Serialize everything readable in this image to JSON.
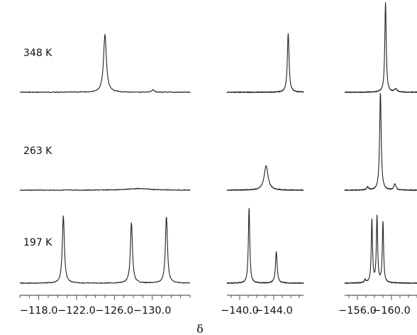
{
  "chart_data": {
    "type": "line",
    "title": "",
    "xlabel": "δ",
    "ylabel": "",
    "x_direction": "decreasing",
    "temperatures": [
      "348 K",
      "263 K",
      "197 K"
    ],
    "panels": [
      {
        "xlim": [
          -116.0,
          -134.0
        ],
        "tick_labels": [
          "−118.0",
          "−122.0",
          "−126.0",
          "−130.0"
        ],
        "tick_values": [
          -118.0,
          -122.0,
          -126.0,
          -130.0
        ],
        "minor_step": 1.0,
        "spectra": [
          {
            "temperature": "348 K",
            "peaks": [
              {
                "delta": -125.0,
                "height": 0.74,
                "width": 0.18
              },
              {
                "delta": -130.1,
                "height": 0.03,
                "width": 0.15
              }
            ]
          },
          {
            "temperature": "263 K",
            "peaks": [
              {
                "delta": -128.5,
                "height": 0.02,
                "width": 1.6
              }
            ]
          },
          {
            "temperature": "197 K",
            "peaks": [
              {
                "delta": -120.6,
                "height": 0.87,
                "width": 0.13
              },
              {
                "delta": -127.8,
                "height": 0.78,
                "width": 0.13
              },
              {
                "delta": -131.5,
                "height": 0.86,
                "width": 0.13
              }
            ]
          }
        ]
      },
      {
        "xlim": [
          -138.5,
          -147.5
        ],
        "tick_labels": [
          "−140.0",
          "−144.0"
        ],
        "tick_values": [
          -140.0,
          -144.0
        ],
        "minor_step": 1.0,
        "spectra": [
          {
            "temperature": "348 K",
            "peaks": [
              {
                "delta": -145.7,
                "height": 0.75,
                "width": 0.12
              }
            ]
          },
          {
            "temperature": "263 K",
            "peaks": [
              {
                "delta": -143.1,
                "height": 0.31,
                "width": 0.28
              }
            ]
          },
          {
            "temperature": "197 K",
            "peaks": [
              {
                "delta": -141.1,
                "height": 0.96,
                "width": 0.1
              },
              {
                "delta": -144.3,
                "height": 0.4,
                "width": 0.12
              }
            ]
          }
        ]
      },
      {
        "xlim": [
          -154.5,
          -163.0
        ],
        "tick_labels": [
          "−156.0",
          "−160.0"
        ],
        "tick_values": [
          -156.0,
          -160.0
        ],
        "minor_step": 1.0,
        "spectra": [
          {
            "temperature": "348 K",
            "peaks": [
              {
                "delta": -159.3,
                "height": 1.15,
                "width": 0.1
              },
              {
                "delta": -160.5,
                "height": 0.04,
                "width": 0.18
              }
            ]
          },
          {
            "temperature": "263 K",
            "peaks": [
              {
                "delta": -158.7,
                "height": 1.25,
                "width": 0.11
              },
              {
                "delta": -157.2,
                "height": 0.04,
                "width": 0.12
              },
              {
                "delta": -160.4,
                "height": 0.08,
                "width": 0.14
              }
            ]
          },
          {
            "temperature": "197 K",
            "peaks": [
              {
                "delta": -157.7,
                "height": 0.8,
                "width": 0.09
              },
              {
                "delta": -158.3,
                "height": 0.84,
                "width": 0.09
              },
              {
                "delta": -159.0,
                "height": 0.78,
                "width": 0.09
              },
              {
                "delta": -156.9,
                "height": 0.04,
                "width": 0.1
              }
            ]
          }
        ]
      }
    ]
  }
}
